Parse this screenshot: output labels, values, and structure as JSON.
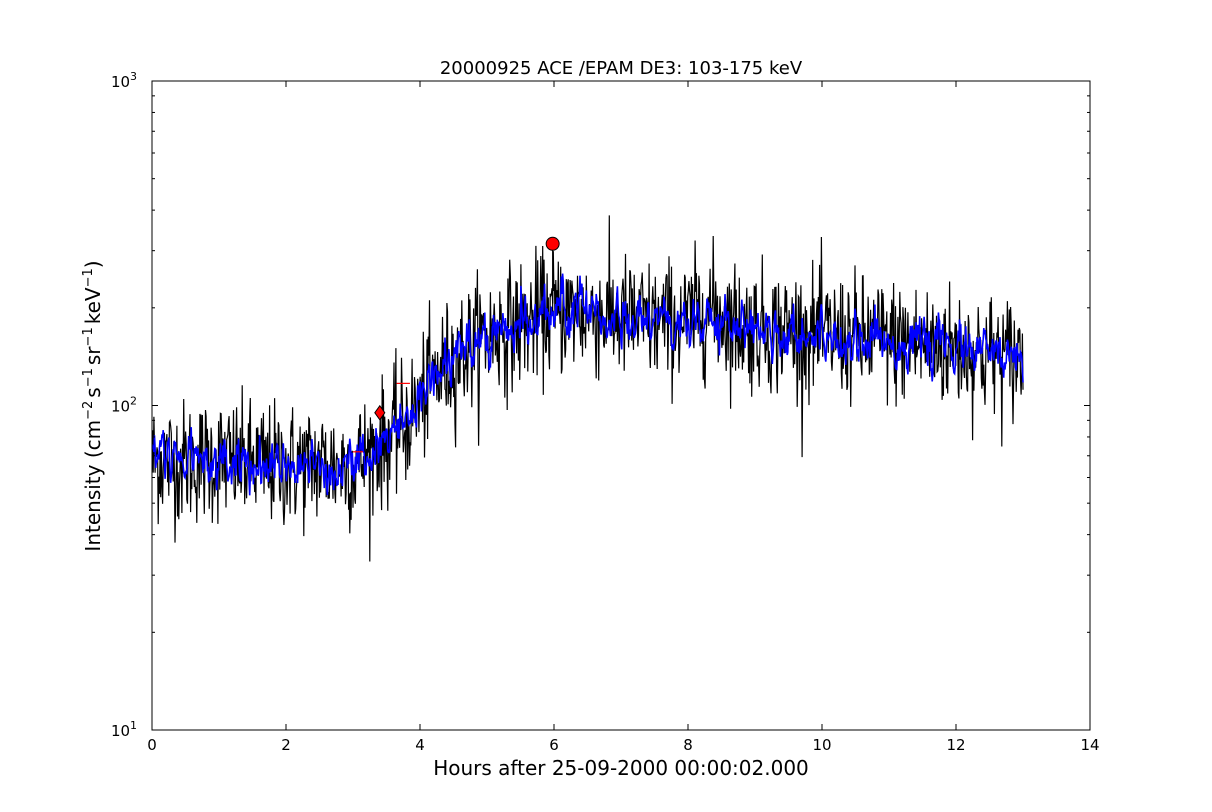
{
  "chart_data": {
    "type": "line",
    "title": "20000925 ACE /EPAM DE3: 103-175 keV",
    "xlabel": "Hours after 25-09-2000 00:00:02.000",
    "ylabel_base": "Intensity (cm",
    "ylabel_sup1": "−2",
    "ylabel_mid1": "s",
    "ylabel_sup2": "−1",
    "ylabel_mid2": "sr",
    "ylabel_sup3": "−1",
    "ylabel_mid3": "keV",
    "ylabel_sup4": "−1",
    "ylabel_end": ")",
    "xlim": [
      0,
      14
    ],
    "ylim": [
      10,
      1000
    ],
    "yscale": "log",
    "grid": false,
    "x_ticks": [
      0,
      2,
      4,
      6,
      8,
      10,
      12,
      14
    ],
    "x_tick_labels": [
      "0",
      "2",
      "4",
      "6",
      "8",
      "10",
      "12",
      "14"
    ],
    "y_ticks": [
      10,
      100,
      1000
    ],
    "y_tick_labels": [
      {
        "base": "10",
        "exp": "1"
      },
      {
        "base": "10",
        "exp": "2"
      },
      {
        "base": "10",
        "exp": "3"
      }
    ],
    "series": [
      {
        "color": "#000000",
        "style": "raw",
        "profile": [
          [
            0,
            68
          ],
          [
            0.5,
            67
          ],
          [
            1.0,
            68
          ],
          [
            1.5,
            66
          ],
          [
            2.0,
            65
          ],
          [
            2.5,
            66
          ],
          [
            3.0,
            65
          ],
          [
            3.4,
            75
          ],
          [
            3.8,
            88
          ],
          [
            4.2,
            120
          ],
          [
            4.6,
            145
          ],
          [
            5.0,
            165
          ],
          [
            5.5,
            178
          ],
          [
            6.0,
            195
          ],
          [
            6.5,
            192
          ],
          [
            7.0,
            185
          ],
          [
            7.5,
            180
          ],
          [
            8.0,
            182
          ],
          [
            8.3,
            200
          ],
          [
            8.8,
            175
          ],
          [
            9.5,
            170
          ],
          [
            10.0,
            165
          ],
          [
            11.0,
            158
          ],
          [
            12.0,
            150
          ],
          [
            12.5,
            143
          ],
          [
            13.0,
            140
          ]
        ],
        "noise": 0.22
      },
      {
        "color": "#0000ff",
        "style": "smoothed",
        "profile": [
          [
            0,
            68
          ],
          [
            0.5,
            67
          ],
          [
            1.0,
            68
          ],
          [
            1.5,
            66
          ],
          [
            2.0,
            65
          ],
          [
            2.5,
            66
          ],
          [
            3.0,
            65
          ],
          [
            3.4,
            75
          ],
          [
            3.8,
            88
          ],
          [
            4.2,
            120
          ],
          [
            4.6,
            145
          ],
          [
            5.0,
            165
          ],
          [
            5.5,
            178
          ],
          [
            6.0,
            195
          ],
          [
            6.5,
            192
          ],
          [
            7.0,
            185
          ],
          [
            7.5,
            180
          ],
          [
            8.0,
            182
          ],
          [
            8.3,
            200
          ],
          [
            8.8,
            175
          ],
          [
            9.5,
            170
          ],
          [
            10.0,
            165
          ],
          [
            11.0,
            158
          ],
          [
            12.0,
            150
          ],
          [
            12.5,
            143
          ],
          [
            13.0,
            140
          ]
        ],
        "noise": 0.08
      }
    ],
    "markers": [
      {
        "shape": "circle",
        "x": 5.98,
        "y": 315,
        "color": "#ff0000"
      },
      {
        "shape": "diamond",
        "x": 3.4,
        "y": 95,
        "color": "#ff0000"
      }
    ],
    "red_segments": [
      {
        "x1": 3.0,
        "x2": 3.15,
        "y": 72
      },
      {
        "x1": 3.65,
        "x2": 3.85,
        "y": 117
      }
    ],
    "spike": {
      "x": 5.98,
      "y_low": 195,
      "y_high": 315
    }
  }
}
